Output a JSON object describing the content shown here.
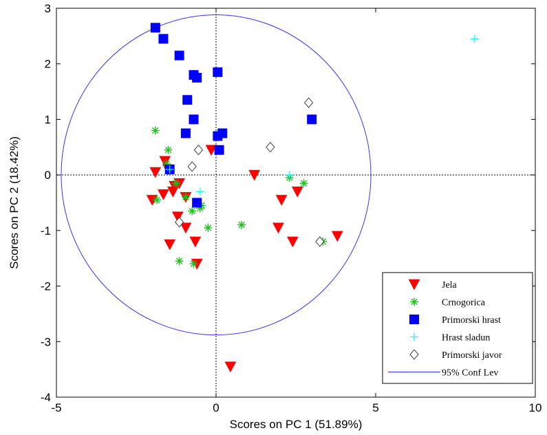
{
  "chart_data": {
    "type": "scatter",
    "title": "",
    "xlabel": "Scores on PC 1 (51.89%)",
    "ylabel": "Scores on PC 2 (18.42%)",
    "xlim": [
      -5,
      10
    ],
    "ylim": [
      -4,
      3
    ],
    "xticks": [
      -5,
      0,
      5,
      10
    ],
    "yticks": [
      -4,
      -3,
      -2,
      -1,
      0,
      1,
      2,
      3
    ],
    "xtick_labels": [
      "-5",
      "0",
      "5",
      "10"
    ],
    "ytick_labels": [
      "-4",
      "-3",
      "-2",
      "-1",
      "0",
      "1",
      "2",
      "3"
    ],
    "grid": false,
    "zero_lines": true,
    "legend_position": "bottom-right",
    "series": [
      {
        "name": "Jela",
        "marker": "triangle-down",
        "color": "#ff0000",
        "points": [
          [
            -2.0,
            -0.45
          ],
          [
            -1.9,
            0.05
          ],
          [
            -1.6,
            0.25
          ],
          [
            -1.65,
            -0.35
          ],
          [
            -1.5,
            0.1
          ],
          [
            -1.3,
            -0.2
          ],
          [
            -1.35,
            -0.3
          ],
          [
            -1.15,
            -0.15
          ],
          [
            -1.2,
            -0.75
          ],
          [
            -1.45,
            -1.25
          ],
          [
            -0.95,
            -0.4
          ],
          [
            -0.95,
            -0.95
          ],
          [
            -0.65,
            -1.2
          ],
          [
            -0.6,
            -1.6
          ],
          [
            -0.15,
            0.45
          ],
          [
            1.2,
            0.0
          ],
          [
            2.05,
            -0.45
          ],
          [
            1.95,
            -0.95
          ],
          [
            2.55,
            -0.3
          ],
          [
            2.4,
            -1.2
          ],
          [
            3.8,
            -1.1
          ],
          [
            0.45,
            -3.45
          ]
        ]
      },
      {
        "name": "Crnogorica",
        "marker": "asterisk",
        "color": "#1ec01e",
        "points": [
          [
            -1.9,
            0.8
          ],
          [
            -1.55,
            0.2
          ],
          [
            -1.5,
            0.45
          ],
          [
            -1.85,
            -0.45
          ],
          [
            -1.25,
            -0.15
          ],
          [
            -0.95,
            -0.4
          ],
          [
            -0.75,
            -0.65
          ],
          [
            -0.45,
            -0.55
          ],
          [
            -0.5,
            -0.6
          ],
          [
            -0.25,
            -0.95
          ],
          [
            -1.15,
            -1.55
          ],
          [
            -0.7,
            -1.6
          ],
          [
            0.8,
            -0.9
          ],
          [
            2.3,
            -0.05
          ],
          [
            2.75,
            -0.15
          ],
          [
            3.35,
            -1.2
          ]
        ]
      },
      {
        "name": "Primorski hrast",
        "marker": "square",
        "color": "#0000ff",
        "points": [
          [
            -1.9,
            2.65
          ],
          [
            -1.65,
            2.45
          ],
          [
            -1.15,
            2.15
          ],
          [
            -0.7,
            1.8
          ],
          [
            -0.6,
            1.75
          ],
          [
            0.05,
            1.85
          ],
          [
            -0.9,
            1.35
          ],
          [
            -0.7,
            1.0
          ],
          [
            -0.95,
            0.75
          ],
          [
            0.05,
            0.7
          ],
          [
            0.2,
            0.75
          ],
          [
            0.1,
            0.45
          ],
          [
            -1.45,
            0.1
          ],
          [
            -0.6,
            -0.5
          ],
          [
            3.0,
            1.0
          ]
        ]
      },
      {
        "name": "Hrast sladun",
        "marker": "plus",
        "color": "#00ffff",
        "points": [
          [
            8.1,
            2.45
          ],
          [
            2.3,
            0.0
          ],
          [
            -0.5,
            -0.3
          ],
          [
            -1.45,
            0.1
          ]
        ]
      },
      {
        "name": "Primorski javor",
        "marker": "diamond",
        "color": "#ffffff",
        "stroke": "#404040",
        "points": [
          [
            -0.55,
            0.45
          ],
          [
            -0.75,
            0.15
          ],
          [
            1.7,
            0.5
          ],
          [
            2.9,
            1.3
          ],
          [
            -1.15,
            -0.85
          ],
          [
            3.25,
            -1.2
          ]
        ]
      }
    ],
    "confidence_ellipse": {
      "name": "95% Conf Lev",
      "color": "#3333ff",
      "center": [
        0,
        0
      ],
      "rx": 4.85,
      "ry": 2.88
    }
  }
}
